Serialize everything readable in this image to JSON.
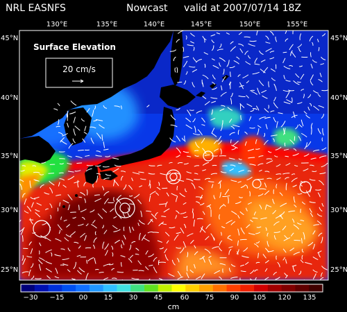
{
  "header": {
    "source": "NRL EASNFS",
    "product": "Nowcast",
    "valid": "valid at 2007/07/14 18Z"
  },
  "map": {
    "variable_label": "Surface Elevation",
    "vector_scale_label": "20 cm/s",
    "longitude_labels": [
      "130°E",
      "135°E",
      "140°E",
      "145°E",
      "150°E",
      "155°E"
    ],
    "latitude_labels": [
      "45°N",
      "40°N",
      "35°N",
      "30°N",
      "25°N"
    ]
  },
  "colorbar": {
    "tick_labels": [
      "−30",
      "−15",
      "00",
      "15",
      "30",
      "45",
      "60",
      "75",
      "90",
      "105",
      "120",
      "135"
    ],
    "units": "cm",
    "colors": [
      "#00007a",
      "#0010b0",
      "#0030d8",
      "#0050f0",
      "#1070ff",
      "#2098ff",
      "#30c0ff",
      "#40e0e0",
      "#40e080",
      "#60e020",
      "#c0f000",
      "#ffff00",
      "#ffd000",
      "#ffa000",
      "#ff7000",
      "#ff4000",
      "#f02000",
      "#d00000",
      "#a00000",
      "#800000",
      "#600000",
      "#400000"
    ]
  }
}
